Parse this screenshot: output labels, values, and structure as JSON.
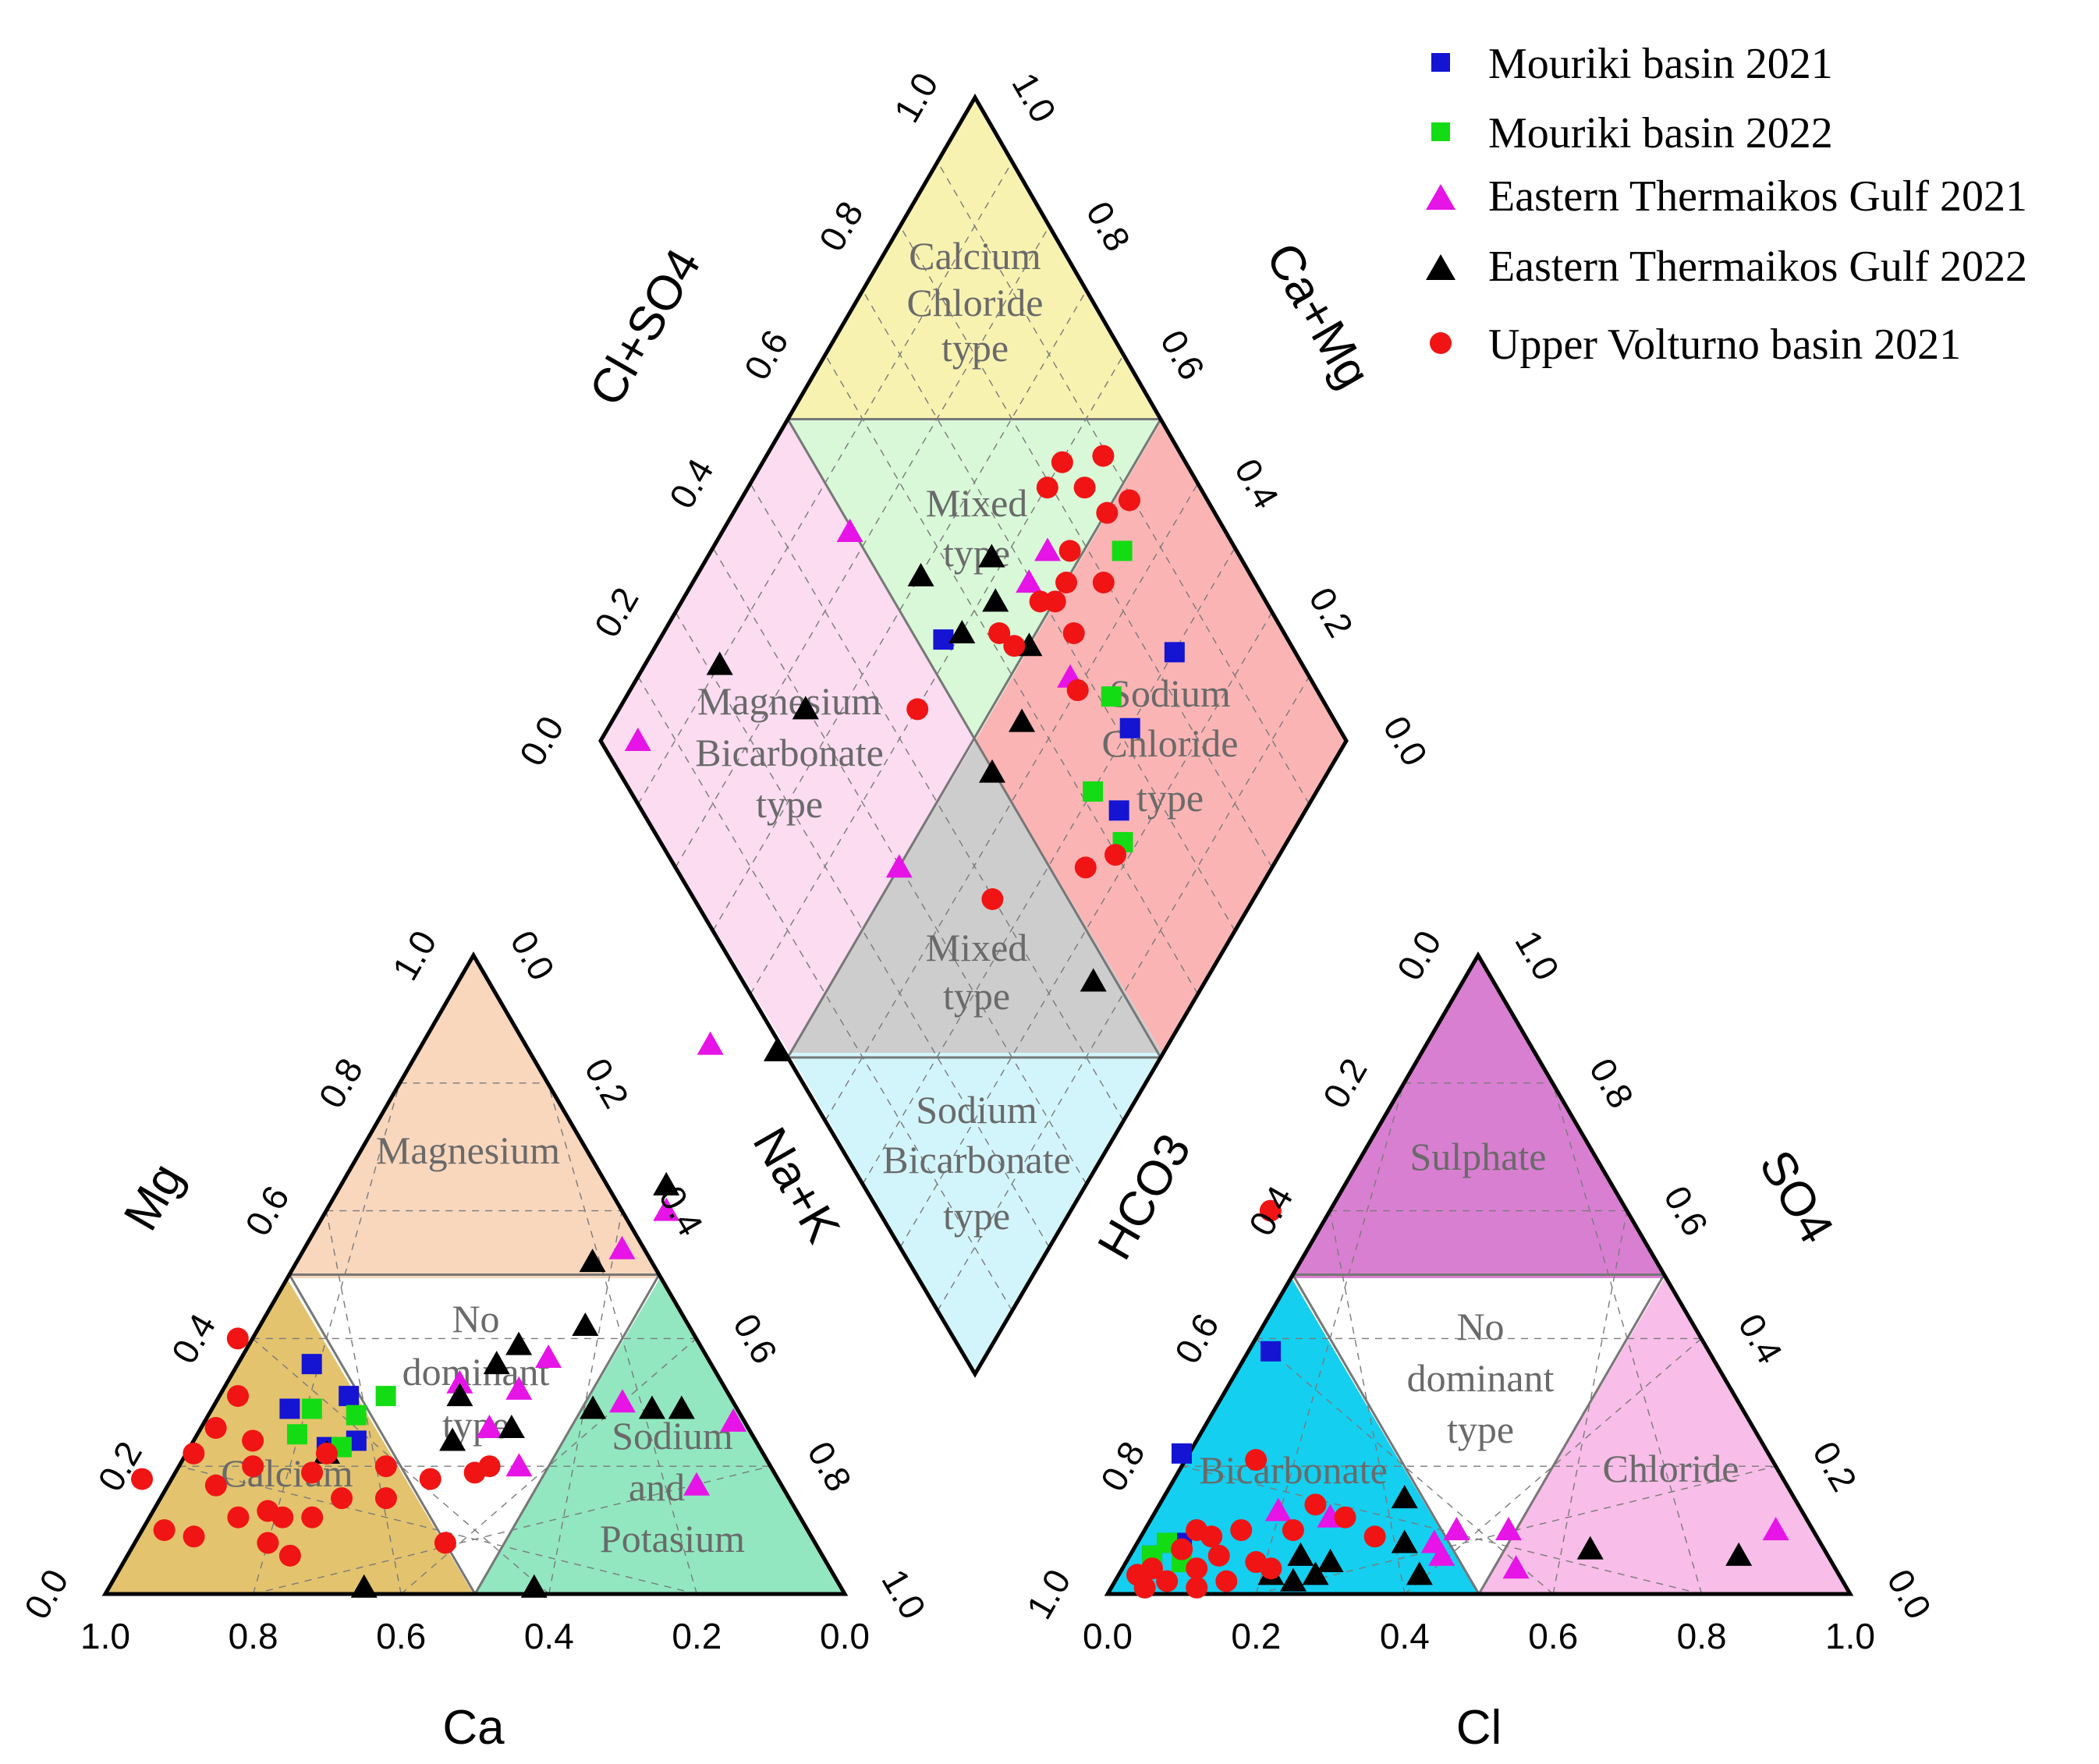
{
  "chart_data": {
    "type": "scatter",
    "subtype": "piper-diagram",
    "tick_values": [
      "0.0",
      "0.2",
      "0.4",
      "0.6",
      "0.8",
      "1.0"
    ],
    "axes": {
      "cation_x": "Ca",
      "cation_left": "Mg",
      "cation_right": "Na+K",
      "anion_x": "Cl",
      "anion_left": "HCO3",
      "anion_right": "SO4",
      "diamond_left": "Cl+SO4",
      "diamond_right": "Ca+Mg"
    },
    "zones": {
      "cation": [
        [
          "Magnesium"
        ],
        [
          "No",
          "dominant",
          "type"
        ],
        [
          "Calcium"
        ],
        [
          "Sodium",
          "and",
          "Potasium"
        ]
      ],
      "anion": [
        [
          "Sulphate"
        ],
        [
          "No",
          "dominant",
          "type"
        ],
        [
          "Bicarbonate"
        ],
        [
          "Chloride"
        ]
      ],
      "diamond": [
        [
          "Calcium",
          "Chloride",
          "type"
        ],
        [
          "Mixed",
          "type"
        ],
        [
          "Magnesium",
          "Bicarbonate",
          "type"
        ],
        [
          "Sodium",
          "Chloride",
          "type"
        ],
        [
          "Mixed",
          "type"
        ],
        [
          "Sodium",
          "Bicarbonate",
          "type"
        ]
      ]
    },
    "zone_colors": {
      "magnesium": "#f9d7bd",
      "calcium": "#e3c36e",
      "sodium_potassium": "#92e7c0",
      "sulphate": "#d97fd1",
      "bicarbonate": "#14cff0",
      "chloride": "#f8bde8",
      "calcium_chloride": "#f8f2b0",
      "mixed_upper": "#d8f8d8",
      "magnesium_bicarbonate": "#fbdcf0",
      "sodium_chloride": "#fbb4b4",
      "mixed_lower": "#cdcdcd",
      "sodium_bicarbonate": "#d2f5fb"
    },
    "series": [
      {
        "name": "Mouriki basin 2021",
        "marker": "square",
        "color": "#1414d2",
        "cation": [
          [
            0.72,
            0.36
          ],
          [
            0.75,
            0.29
          ],
          [
            0.67,
            0.31
          ],
          [
            0.7,
            0.23
          ],
          [
            0.66,
            0.24
          ]
        ],
        "anion": [
          [
            0.22,
            0.38
          ],
          [
            0.1,
            0.22
          ],
          [
            0.08,
            0.08
          ],
          [
            0.06,
            0.06
          ],
          [
            0.1,
            0.08
          ]
        ],
        "diamond": [
          [
            0.62,
            0.54
          ],
          [
            0.3,
            0.84
          ],
          [
            0.3,
            0.72
          ],
          [
            0.25,
            0.64
          ]
        ]
      },
      {
        "name": "Mouriki basin 2022",
        "marker": "square",
        "color": "#14dc14",
        "cation": [
          [
            0.72,
            0.29
          ],
          [
            0.62,
            0.31
          ],
          [
            0.66,
            0.28
          ],
          [
            0.74,
            0.25
          ],
          [
            0.68,
            0.23
          ]
        ],
        "anion": [
          [
            0.06,
            0.06
          ],
          [
            0.08,
            0.08
          ],
          [
            0.1,
            0.05
          ]
        ],
        "diamond": [
          [
            0.45,
            0.85
          ],
          [
            0.35,
            0.72
          ],
          [
            0.3,
            0.62
          ],
          [
            0.22,
            0.62
          ]
        ]
      },
      {
        "name": "Eastern Thermaikos Gulf 2021",
        "marker": "triangle",
        "color": "#e614e6",
        "cation": [
          [
            0.18,
            0.86
          ],
          [
            0.3,
            0.54
          ],
          [
            0.24,
            0.6
          ],
          [
            0.4,
            0.37
          ],
          [
            0.52,
            0.33
          ],
          [
            0.44,
            0.32
          ],
          [
            0.3,
            0.3
          ],
          [
            0.48,
            0.26
          ],
          [
            0.44,
            0.2
          ],
          [
            0.2,
            0.17
          ],
          [
            0.15,
            0.27
          ]
        ],
        "anion": [
          [
            0.47,
            0.1
          ],
          [
            0.45,
            0.06
          ],
          [
            0.44,
            0.08
          ],
          [
            0.54,
            0.1
          ],
          [
            0.55,
            0.04
          ],
          [
            0.9,
            0.1
          ],
          [
            0.3,
            0.12
          ],
          [
            0.23,
            0.13
          ]
        ],
        "diamond": [
          [
            0.95,
            0.05
          ],
          [
            0.83,
            0.5
          ],
          [
            0.55,
            0.75
          ],
          [
            0.5,
            0.3
          ],
          [
            0.55,
            0.7
          ],
          [
            0.42,
            0.68
          ]
        ]
      },
      {
        "name": "Eastern Thermaikos Gulf 2022",
        "marker": "triangle",
        "color": "#000000",
        "cation": [
          [
            0.09,
            0.85
          ],
          [
            0.24,
            0.64
          ],
          [
            0.34,
            0.52
          ],
          [
            0.44,
            0.39
          ],
          [
            0.35,
            0.42
          ],
          [
            0.47,
            0.36
          ],
          [
            0.52,
            0.31
          ],
          [
            0.34,
            0.29
          ],
          [
            0.45,
            0.26
          ],
          [
            0.53,
            0.24
          ],
          [
            0.7,
            0.22
          ],
          [
            0.26,
            0.29
          ],
          [
            0.22,
            0.29
          ],
          [
            0.65,
            0.01
          ],
          [
            0.42,
            0.01
          ]
        ],
        "anion": [
          [
            0.65,
            0.07
          ],
          [
            0.85,
            0.06
          ],
          [
            0.4,
            0.15
          ],
          [
            0.4,
            0.08
          ],
          [
            0.42,
            0.03
          ],
          [
            0.28,
            0.03
          ],
          [
            0.26,
            0.06
          ],
          [
            0.22,
            0.03
          ],
          [
            0.3,
            0.05
          ],
          [
            0.25,
            0.02
          ]
        ],
        "diamond": [
          [
            0.75,
            0.3
          ],
          [
            0.7,
            0.56
          ],
          [
            0.6,
            0.57
          ],
          [
            0.58,
            0.64
          ],
          [
            0.62,
            0.67
          ],
          [
            0.45,
            0.58
          ],
          [
            0.5,
            0.65
          ],
          [
            0.45,
            0.5
          ],
          [
            0.15,
            0.47
          ],
          [
            0.9,
            0.22
          ]
        ]
      },
      {
        "name": "Upper Volturno basin 2021",
        "marker": "circle",
        "color": "#f01414",
        "cation": [
          [
            0.82,
            0.4
          ],
          [
            0.82,
            0.31
          ],
          [
            0.85,
            0.26
          ],
          [
            0.88,
            0.22
          ],
          [
            0.85,
            0.17
          ],
          [
            0.8,
            0.2
          ],
          [
            0.82,
            0.12
          ],
          [
            0.78,
            0.13
          ],
          [
            0.76,
            0.12
          ],
          [
            0.75,
            0.06
          ],
          [
            0.78,
            0.08
          ],
          [
            0.72,
            0.12
          ],
          [
            0.7,
            0.22
          ],
          [
            0.62,
            0.2
          ],
          [
            0.62,
            0.15
          ],
          [
            0.56,
            0.18
          ],
          [
            0.5,
            0.19
          ],
          [
            0.48,
            0.2
          ],
          [
            0.54,
            0.08
          ],
          [
            0.88,
            0.09
          ],
          [
            0.95,
            0.18
          ],
          [
            0.92,
            0.1
          ],
          [
            0.8,
            0.24
          ],
          [
            0.72,
            0.19
          ],
          [
            0.68,
            0.15
          ]
        ],
        "anion": [
          [
            0.22,
            0.6
          ],
          [
            0.2,
            0.21
          ],
          [
            0.15,
            0.06
          ],
          [
            0.12,
            0.1
          ],
          [
            0.1,
            0.07
          ],
          [
            0.06,
            0.04
          ],
          [
            0.04,
            0.03
          ],
          [
            0.08,
            0.02
          ],
          [
            0.12,
            0.04
          ],
          [
            0.16,
            0.02
          ],
          [
            0.2,
            0.05
          ],
          [
            0.25,
            0.1
          ],
          [
            0.28,
            0.14
          ],
          [
            0.32,
            0.12
          ],
          [
            0.36,
            0.09
          ],
          [
            0.14,
            0.09
          ],
          [
            0.18,
            0.1
          ],
          [
            0.22,
            0.04
          ],
          [
            0.12,
            0.01
          ],
          [
            0.05,
            0.01
          ]
        ],
        "diamond": [
          [
            0.52,
            0.78
          ],
          [
            0.6,
            0.8
          ],
          [
            0.6,
            0.84
          ],
          [
            0.55,
            0.85
          ],
          [
            0.5,
            0.86
          ],
          [
            0.45,
            0.8
          ],
          [
            0.5,
            0.75
          ],
          [
            0.45,
            0.72
          ],
          [
            0.4,
            0.68
          ],
          [
            0.48,
            0.9
          ],
          [
            0.55,
            0.9
          ],
          [
            0.5,
            0.72
          ],
          [
            0.52,
            0.63
          ],
          [
            0.6,
            0.45
          ],
          [
            0.35,
            0.4
          ],
          [
            0.25,
            0.55
          ],
          [
            0.22,
            0.6
          ],
          [
            0.55,
            0.62
          ],
          [
            0.52,
            0.7
          ]
        ]
      }
    ]
  }
}
